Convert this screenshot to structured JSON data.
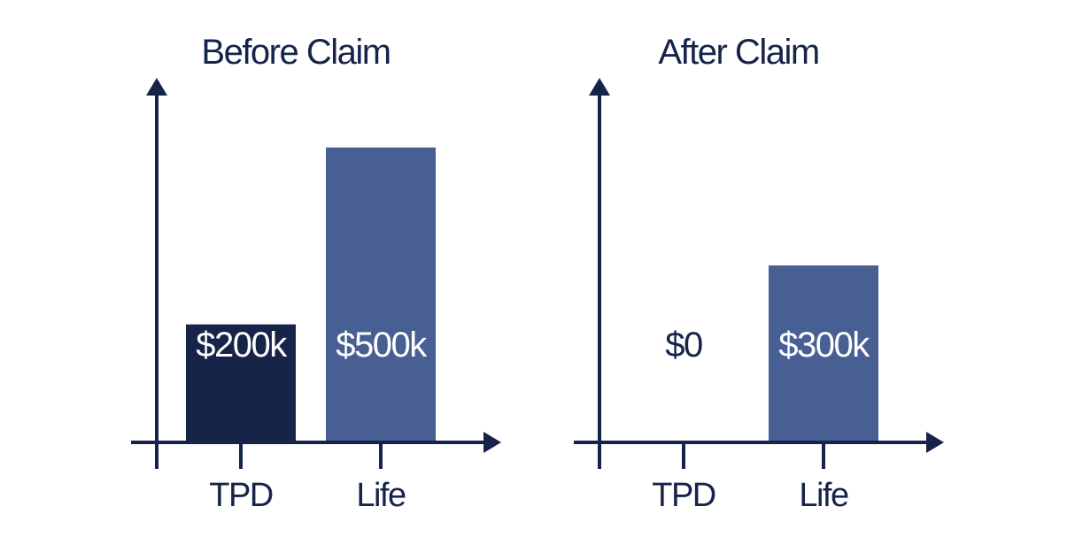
{
  "colors": {
    "axis": "#16244a",
    "text": "#16244a",
    "tpd_bar": "#16244a",
    "life_bar": "#475f93",
    "label_on_bar": "#ffffff"
  },
  "chart_data": [
    {
      "type": "bar",
      "title": "Before Claim",
      "categories": [
        "TPD",
        "Life"
      ],
      "values": [
        200,
        500
      ],
      "value_labels": [
        "$200k",
        "$500k"
      ],
      "unit": "$k",
      "xlabel": "",
      "ylabel": "",
      "ylim": [
        0,
        600
      ],
      "grid": false,
      "legend": "none"
    },
    {
      "type": "bar",
      "title": "After Claim",
      "categories": [
        "TPD",
        "Life"
      ],
      "values": [
        0,
        300
      ],
      "value_labels": [
        "$0",
        "$300k"
      ],
      "unit": "$k",
      "xlabel": "",
      "ylabel": "",
      "ylim": [
        0,
        600
      ],
      "grid": false,
      "legend": "none"
    }
  ]
}
